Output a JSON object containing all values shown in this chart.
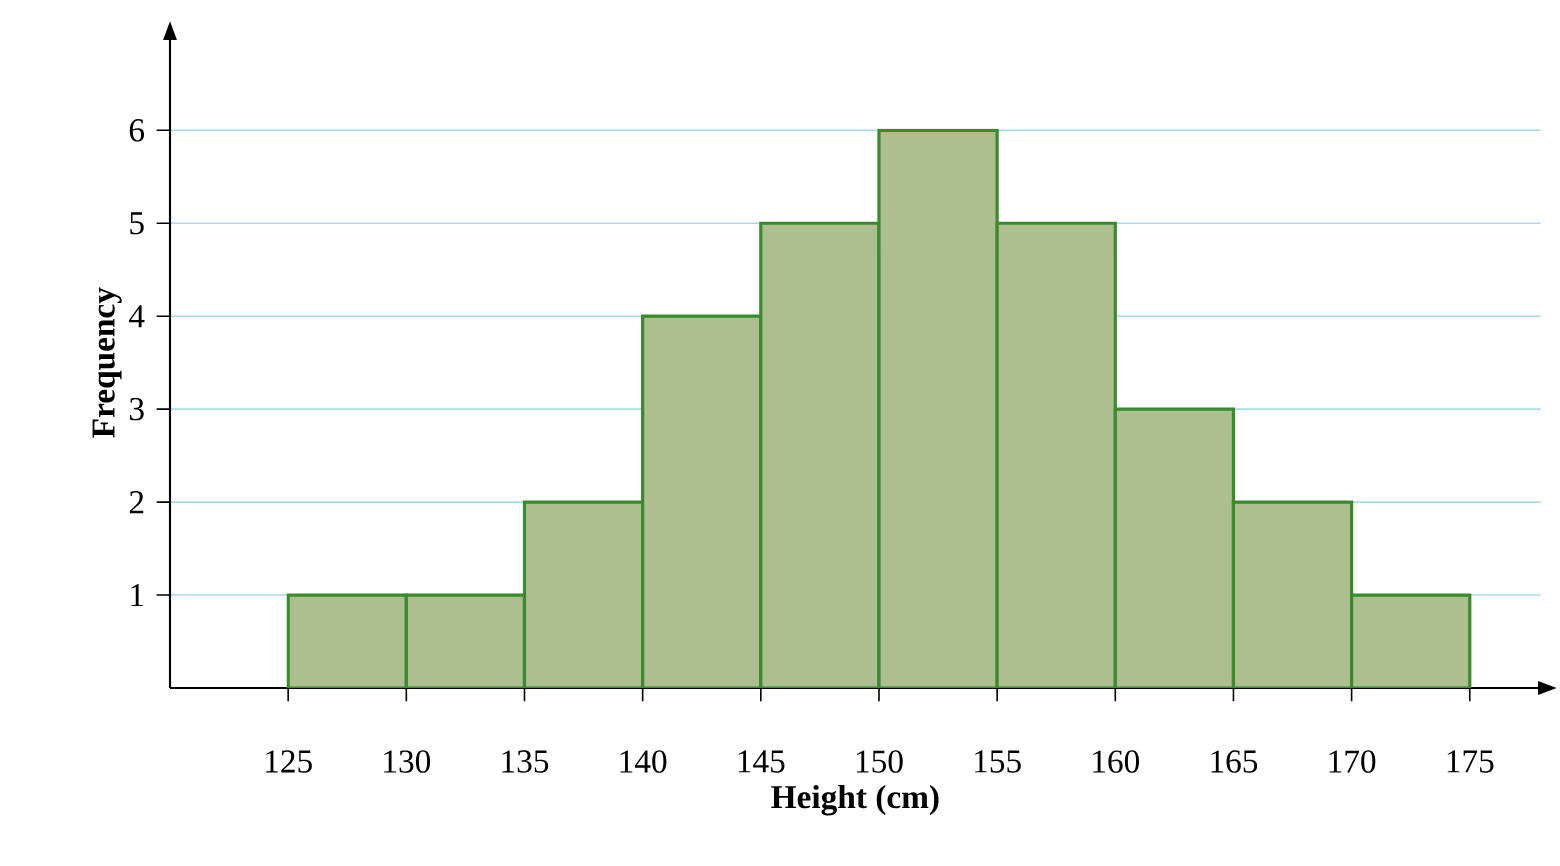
{
  "chart_data": {
    "type": "histogram",
    "xlabel": "Height (cm)",
    "ylabel": "Frequency",
    "bins": [
      125,
      130,
      135,
      140,
      145,
      150,
      155,
      160,
      165,
      170,
      175
    ],
    "values": [
      1,
      1,
      2,
      4,
      5,
      6,
      5,
      3,
      2,
      1
    ],
    "color": "#adbf8f",
    "xlim": [
      120,
      178
    ],
    "ylim": [
      0,
      7
    ],
    "xticks": [
      125,
      130,
      135,
      140,
      145,
      150,
      155,
      160,
      165,
      170,
      175
    ],
    "yticks": [
      1,
      2,
      3,
      4,
      5,
      6
    ],
    "grid": "y"
  }
}
